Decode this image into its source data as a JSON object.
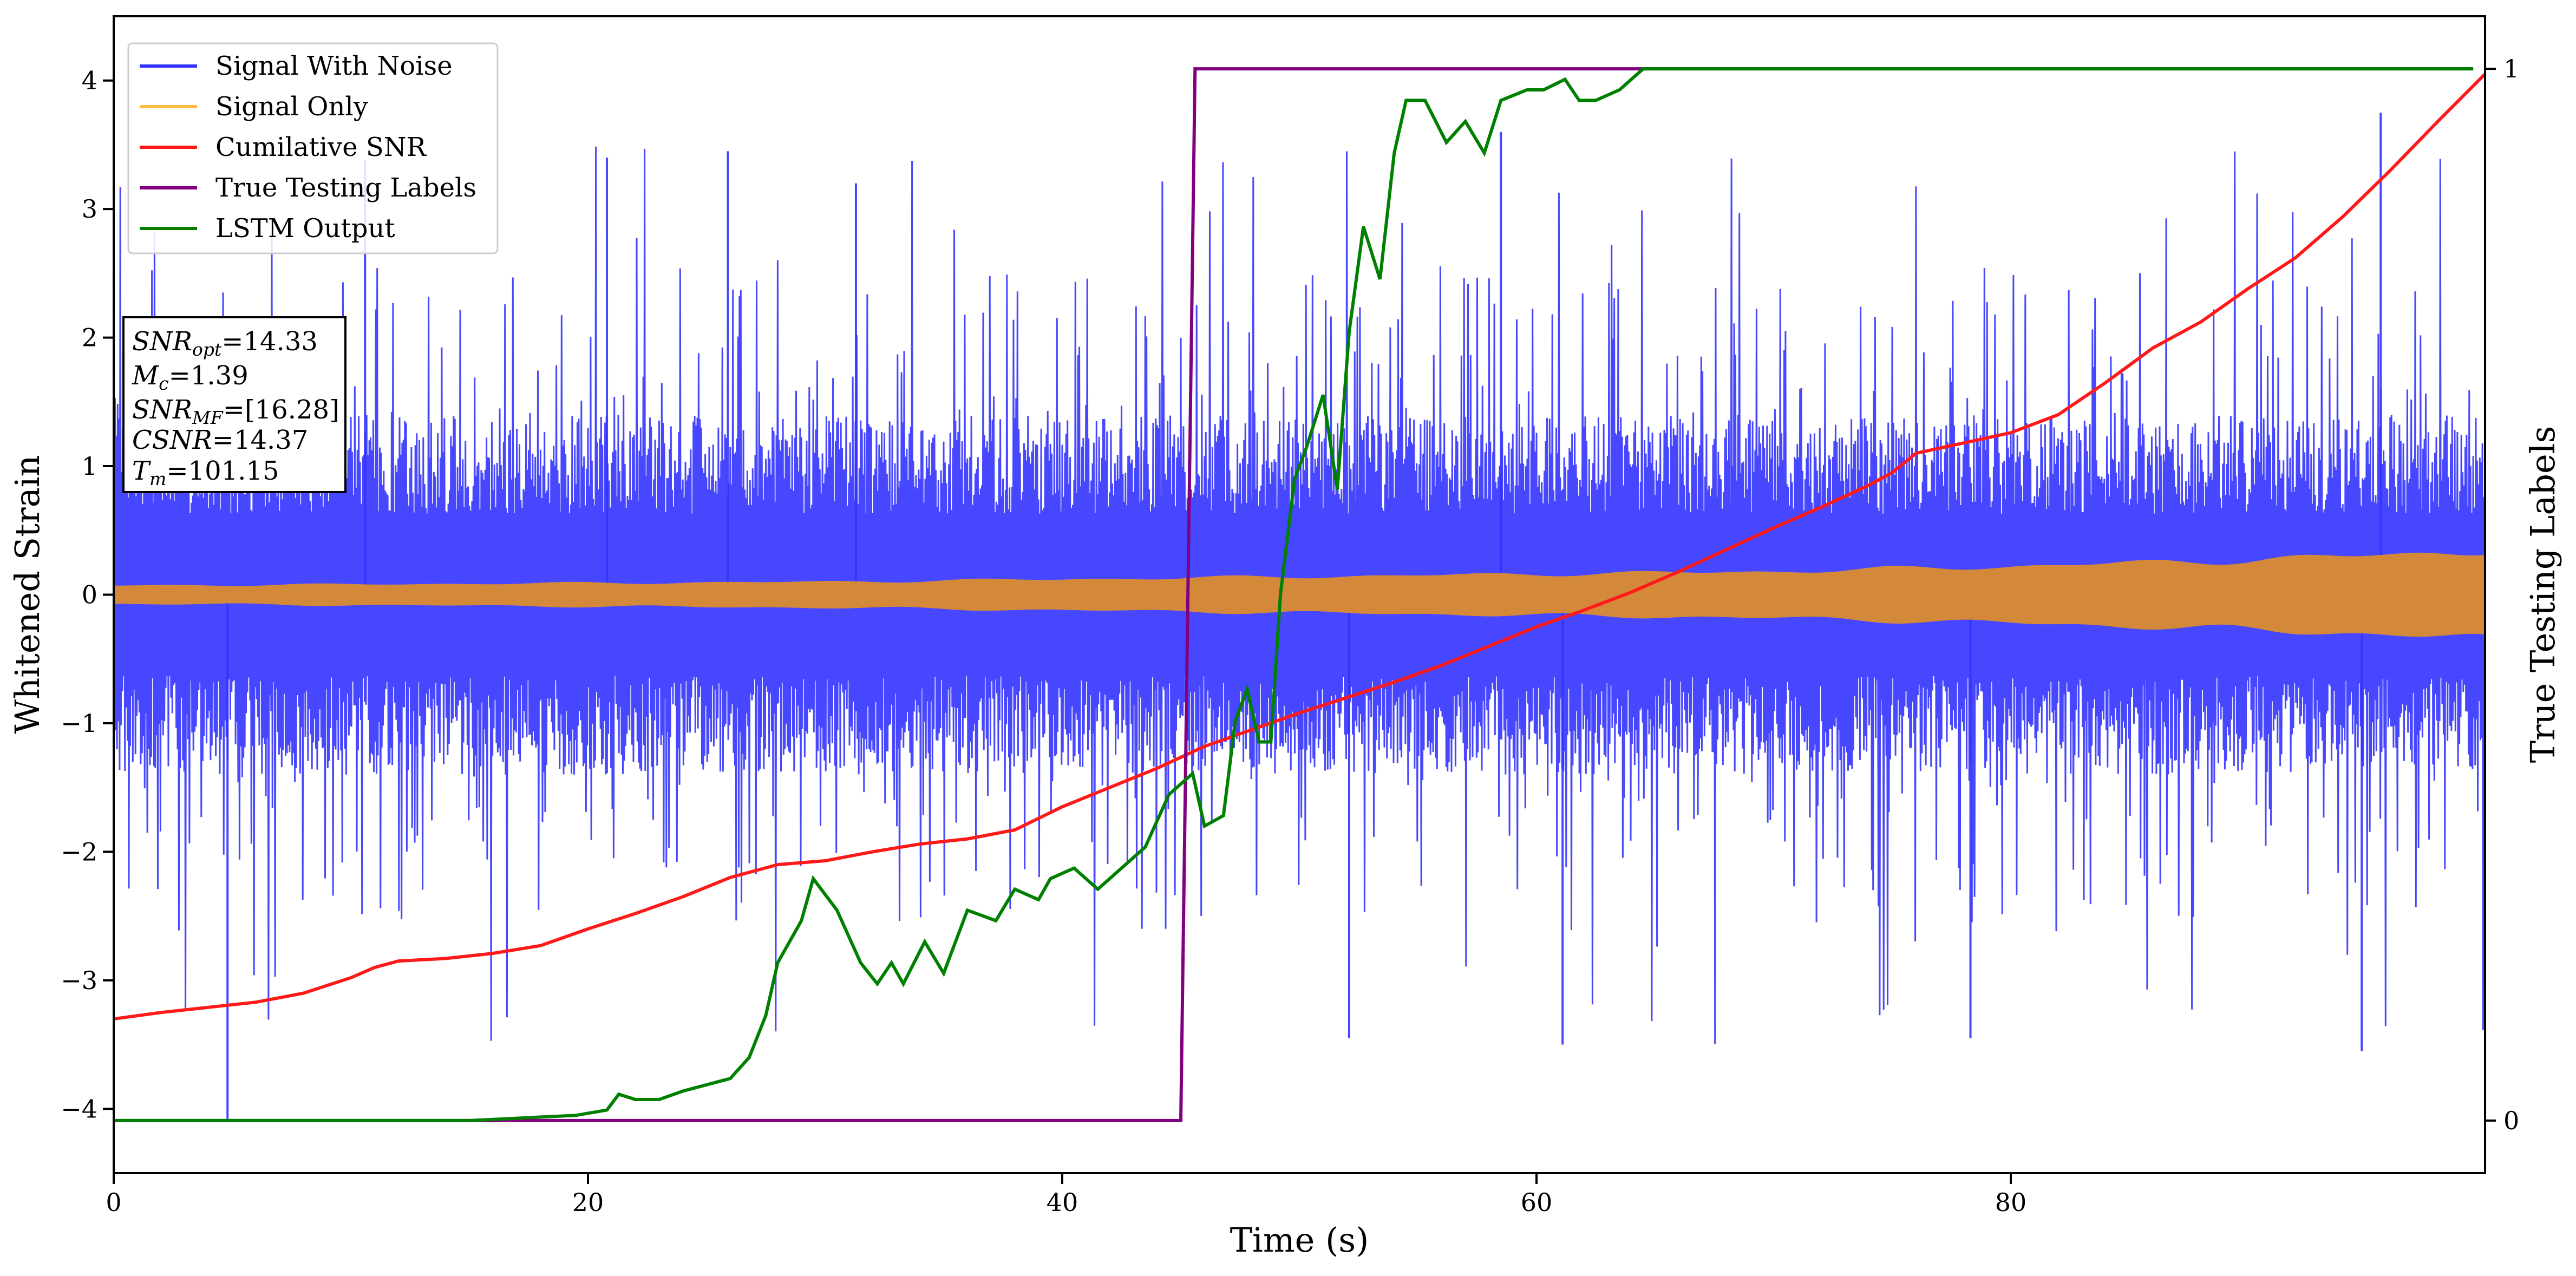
{
  "chart_data": {
    "type": "line",
    "xlabel": "Time (s)",
    "ylabel": "Whitened Strain",
    "y2label": "True Testing Labels",
    "xlim": [
      0,
      100
    ],
    "ylim": [
      -4.5,
      4.5
    ],
    "y2lim": [
      -0.05,
      1.05
    ],
    "x_ticks": [
      0,
      20,
      40,
      60,
      80
    ],
    "y_ticks": [
      -4,
      -3,
      -2,
      -1,
      0,
      1,
      2,
      3,
      4
    ],
    "y2_ticks": [
      0,
      1
    ],
    "legend_position": "top-left",
    "grid": false,
    "legend": [
      {
        "label": "Signal With Noise",
        "color": "#3333ff"
      },
      {
        "label": "Signal Only",
        "color": "#ffbb44"
      },
      {
        "label": "Cumilative SNR",
        "color": "#ff1a1a"
      },
      {
        "label": "True Testing Labels",
        "color": "#800080"
      },
      {
        "label": "LSTM Output",
        "color": "#008000"
      }
    ],
    "annotation": {
      "snr_opt": "14.33",
      "mc": "1.39",
      "snr_mf": "[16.28]",
      "csnr": "14.37",
      "tm": "101.15"
    },
    "series": [
      {
        "name": "Signal With Noise",
        "color": "#3333ff",
        "description": "whitened noisy strain, dense oscillation about 0, core band about ±1.4 with spikes to about ±3.5",
        "core_amplitude": 1.4,
        "max_amplitude": 3.5,
        "spikes": [
          {
            "x": 4.8,
            "y": -4.1
          },
          {
            "x": 10.6,
            "y": 3.38
          },
          {
            "x": 20.8,
            "y": 3.4
          },
          {
            "x": 25.9,
            "y": 3.45
          },
          {
            "x": 31.3,
            "y": 3.2
          },
          {
            "x": 52.1,
            "y": -3.45
          },
          {
            "x": 58.5,
            "y": 3.6
          },
          {
            "x": 61.1,
            "y": -3.5
          },
          {
            "x": 78.3,
            "y": -3.45
          },
          {
            "x": 94.8,
            "y": -3.55
          },
          {
            "x": 95.6,
            "y": 3.75
          }
        ]
      },
      {
        "name": "Signal Only",
        "color": "#ffbb44",
        "description": "chirp signal envelope widening with time",
        "envelope": [
          {
            "x": 0,
            "amp": 0.07
          },
          {
            "x": 10,
            "amp": 0.08
          },
          {
            "x": 20,
            "amp": 0.09
          },
          {
            "x": 30,
            "amp": 0.1
          },
          {
            "x": 40,
            "amp": 0.12
          },
          {
            "x": 50,
            "amp": 0.14
          },
          {
            "x": 60,
            "amp": 0.16
          },
          {
            "x": 70,
            "amp": 0.18
          },
          {
            "x": 80,
            "amp": 0.22
          },
          {
            "x": 90,
            "amp": 0.27
          },
          {
            "x": 100,
            "amp": 0.34
          }
        ]
      },
      {
        "name": "Cumilative SNR",
        "color": "#ff1a1a",
        "axis": "left",
        "points": [
          [
            0,
            -3.3
          ],
          [
            2,
            -3.25
          ],
          [
            4,
            -3.21
          ],
          [
            6,
            -3.17
          ],
          [
            8,
            -3.1
          ],
          [
            10,
            -2.98
          ],
          [
            11,
            -2.9
          ],
          [
            12,
            -2.85
          ],
          [
            14,
            -2.83
          ],
          [
            16,
            -2.79
          ],
          [
            18,
            -2.73
          ],
          [
            20,
            -2.6
          ],
          [
            22,
            -2.48
          ],
          [
            24,
            -2.35
          ],
          [
            26,
            -2.2
          ],
          [
            28,
            -2.1
          ],
          [
            30,
            -2.07
          ],
          [
            32,
            -2.0
          ],
          [
            34,
            -1.94
          ],
          [
            36,
            -1.9
          ],
          [
            38,
            -1.83
          ],
          [
            40,
            -1.65
          ],
          [
            42,
            -1.5
          ],
          [
            44,
            -1.35
          ],
          [
            46,
            -1.18
          ],
          [
            48,
            -1.05
          ],
          [
            50,
            -0.92
          ],
          [
            52,
            -0.8
          ],
          [
            54,
            -0.68
          ],
          [
            56,
            -0.55
          ],
          [
            58,
            -0.4
          ],
          [
            60,
            -0.25
          ],
          [
            62,
            -0.12
          ],
          [
            64,
            0.02
          ],
          [
            66,
            0.18
          ],
          [
            68,
            0.35
          ],
          [
            70,
            0.52
          ],
          [
            72,
            0.68
          ],
          [
            74,
            0.85
          ],
          [
            75,
            0.95
          ],
          [
            76,
            1.1
          ],
          [
            78,
            1.18
          ],
          [
            80,
            1.26
          ],
          [
            82,
            1.4
          ],
          [
            84,
            1.65
          ],
          [
            86,
            1.92
          ],
          [
            88,
            2.12
          ],
          [
            90,
            2.38
          ],
          [
            92,
            2.62
          ],
          [
            94,
            2.94
          ],
          [
            96,
            3.3
          ],
          [
            98,
            3.68
          ],
          [
            100,
            4.05
          ]
        ]
      },
      {
        "name": "True Testing Labels",
        "color": "#800080",
        "axis": "right",
        "points": [
          [
            0,
            0
          ],
          [
            45.0,
            0
          ],
          [
            45.6,
            1
          ],
          [
            99.5,
            1
          ]
        ]
      },
      {
        "name": "LSTM Output",
        "color": "#008000",
        "axis": "right",
        "points": [
          [
            0,
            0
          ],
          [
            15,
            0
          ],
          [
            19.5,
            0.005
          ],
          [
            20.8,
            0.01
          ],
          [
            21.3,
            0.025
          ],
          [
            22,
            0.02
          ],
          [
            23,
            0.02
          ],
          [
            24,
            0.028
          ],
          [
            26,
            0.04
          ],
          [
            26.8,
            0.06
          ],
          [
            27.5,
            0.1
          ],
          [
            28,
            0.15
          ],
          [
            29,
            0.19
          ],
          [
            29.5,
            0.23
          ],
          [
            30.5,
            0.2
          ],
          [
            31.5,
            0.15
          ],
          [
            32.2,
            0.13
          ],
          [
            32.8,
            0.15
          ],
          [
            33.3,
            0.13
          ],
          [
            34.2,
            0.17
          ],
          [
            35,
            0.14
          ],
          [
            36,
            0.2
          ],
          [
            37.2,
            0.19
          ],
          [
            38,
            0.22
          ],
          [
            39,
            0.21
          ],
          [
            39.5,
            0.23
          ],
          [
            40.5,
            0.24
          ],
          [
            41.5,
            0.22
          ],
          [
            42.5,
            0.24
          ],
          [
            43.5,
            0.26
          ],
          [
            44.5,
            0.31
          ],
          [
            45.5,
            0.33
          ],
          [
            46,
            0.28
          ],
          [
            46.8,
            0.29
          ],
          [
            47.3,
            0.38
          ],
          [
            47.8,
            0.41
          ],
          [
            48.3,
            0.36
          ],
          [
            48.8,
            0.36
          ],
          [
            49.2,
            0.5
          ],
          [
            49.8,
            0.61
          ],
          [
            50.3,
            0.64
          ],
          [
            51,
            0.69
          ],
          [
            51.6,
            0.6
          ],
          [
            52.1,
            0.75
          ],
          [
            52.7,
            0.85
          ],
          [
            53.4,
            0.8
          ],
          [
            54,
            0.92
          ],
          [
            54.5,
            0.97
          ],
          [
            55.3,
            0.97
          ],
          [
            56.2,
            0.93
          ],
          [
            57,
            0.95
          ],
          [
            57.8,
            0.92
          ],
          [
            58.5,
            0.97
          ],
          [
            59.6,
            0.98
          ],
          [
            60.3,
            0.98
          ],
          [
            61.2,
            0.99
          ],
          [
            61.8,
            0.97
          ],
          [
            62.5,
            0.97
          ],
          [
            63.5,
            0.98
          ],
          [
            64.5,
            1.0
          ],
          [
            66,
            1.0
          ],
          [
            70,
            1.0
          ],
          [
            99.5,
            1.0
          ]
        ]
      }
    ]
  }
}
